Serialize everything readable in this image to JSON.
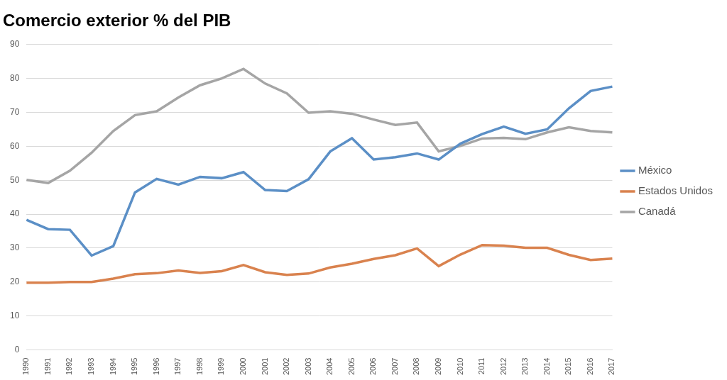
{
  "chart_data": {
    "type": "line",
    "title": "Comercio exterior % del PIB",
    "categories": [
      "1990",
      "1991",
      "1992",
      "1993",
      "1994",
      "1995",
      "1996",
      "1997",
      "1998",
      "1999",
      "2000",
      "2001",
      "2002",
      "2003",
      "2004",
      "2005",
      "2006",
      "2007",
      "2008",
      "2009",
      "2010",
      "2011",
      "2012",
      "2013",
      "2014",
      "2015",
      "2016",
      "2017"
    ],
    "series": [
      {
        "name": "México",
        "color": "#5b8fc6",
        "values": [
          38.3,
          35.6,
          35.4,
          27.8,
          30.6,
          46.4,
          50.4,
          48.7,
          51.0,
          50.6,
          52.4,
          47.1,
          46.8,
          50.3,
          58.5,
          62.4,
          56.1,
          56.8,
          57.9,
          56.1,
          60.8,
          63.6,
          65.8,
          63.7,
          65.0,
          71.2,
          76.3,
          77.6
        ]
      },
      {
        "name": "Estados Unidos",
        "color": "#d9824e",
        "values": [
          19.8,
          19.8,
          20.0,
          20.0,
          21.0,
          22.3,
          22.6,
          23.4,
          22.7,
          23.2,
          25.0,
          22.9,
          22.1,
          22.5,
          24.3,
          25.4,
          26.8,
          27.9,
          29.9,
          24.7,
          28.1,
          30.9,
          30.7,
          30.1,
          30.1,
          28.0,
          26.5,
          26.9
        ]
      },
      {
        "name": "Canadá",
        "color": "#a5a5a5",
        "values": [
          50.1,
          49.2,
          52.8,
          58.1,
          64.5,
          69.2,
          70.3,
          74.4,
          78.0,
          80.0,
          82.8,
          78.5,
          75.6,
          69.9,
          70.3,
          69.6,
          67.9,
          66.3,
          67.0,
          58.5,
          60.1,
          62.3,
          62.5,
          62.1,
          64.1,
          65.6,
          64.5,
          64.1
        ]
      }
    ],
    "ylim": [
      0,
      90
    ],
    "yticks": [
      0,
      10,
      20,
      30,
      40,
      50,
      60,
      70,
      80,
      90
    ],
    "grid": true,
    "legend": "right"
  }
}
